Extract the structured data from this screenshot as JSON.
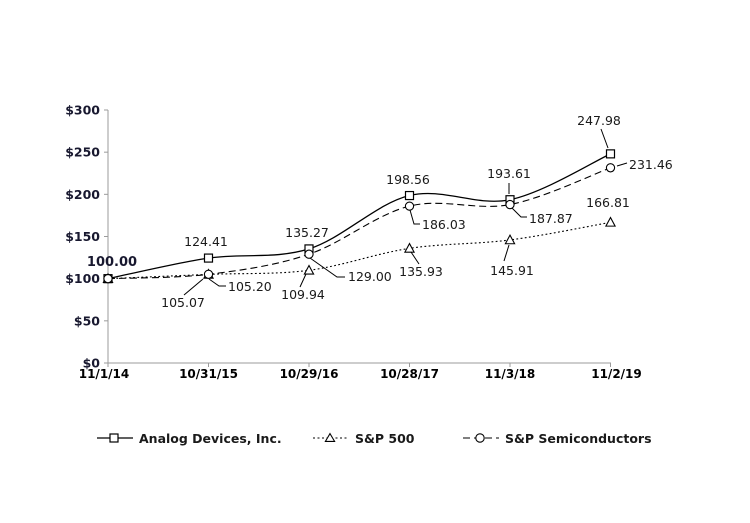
{
  "chart_data": {
    "type": "line",
    "title": "",
    "categories": [
      "11/1/14",
      "10/31/15",
      "10/29/16",
      "10/28/17",
      "11/3/18",
      "11/2/19"
    ],
    "series": [
      {
        "name": "Analog Devices, Inc.",
        "marker": "square",
        "line_style": "solid",
        "values": [
          100.0,
          124.41,
          135.27,
          198.56,
          193.61,
          247.98
        ],
        "point_labels": [
          "100.00",
          "124.41",
          "135.27",
          "198.56",
          "193.61",
          "247.98"
        ]
      },
      {
        "name": "S&P 500",
        "marker": "triangle",
        "line_style": "dotted",
        "values": [
          100.0,
          105.07,
          109.94,
          135.93,
          145.91,
          166.81
        ],
        "point_labels": [
          "",
          "105.07",
          "109.94",
          "135.93",
          "145.91",
          "166.81"
        ]
      },
      {
        "name": "S&P Semiconductors",
        "marker": "circle",
        "line_style": "dashed",
        "values": [
          100.0,
          105.2,
          129.0,
          186.03,
          187.87,
          231.46
        ],
        "point_labels": [
          "",
          "105.20",
          "129.00",
          "186.03",
          "187.87",
          "231.46"
        ]
      }
    ],
    "y_axis": {
      "min": 0,
      "max": 300,
      "step": 50,
      "tick_labels": [
        "$0",
        "$50",
        "$100",
        "$150",
        "$200",
        "$250",
        "$300"
      ]
    },
    "x_axis": {
      "tick_labels": [
        "11/1/14",
        "10/31/15",
        "10/29/16",
        "10/28/17",
        "11/3/18",
        "11/2/19"
      ]
    },
    "grid": "off",
    "legend_position": "bottom",
    "colors": {
      "line": "#000000",
      "axis": "#9b9b9b",
      "axis_label": "#18182f",
      "data_label": "#1a1a1a",
      "marker_fill": "#ffffff"
    }
  }
}
